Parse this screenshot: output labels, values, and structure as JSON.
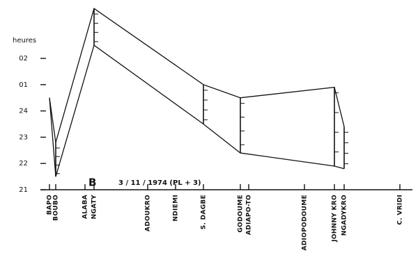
{
  "chart_data": {
    "type": "line",
    "y_label": "heures",
    "annotation_letter": "B",
    "annotation_date": "3 / 11 / 1974   (PL + 3)",
    "categories": [
      "BAPO",
      "BOUBO",
      "ALABA",
      "NGATY",
      "ADOUKRO",
      "NDIEMI",
      "S. DAGBE",
      "GODOUME",
      "ADIAPO-TO",
      "ADIOPODOUME",
      "JOHNNY KRO",
      "NGADYKRO",
      "C. VRIDI"
    ],
    "series": [
      {
        "color": "#111111",
        "values": [
          24.5,
          22.8,
          null,
          27.9,
          null,
          null,
          25.0,
          24.5,
          null,
          null,
          24.9,
          23.4,
          null
        ]
      },
      {
        "color": "#111111",
        "values": [
          24.5,
          21.5,
          null,
          26.5,
          null,
          null,
          23.5,
          22.4,
          null,
          null,
          21.9,
          21.8,
          null
        ]
      }
    ],
    "ylim": [
      21,
      28
    ],
    "yticks": [
      21,
      22,
      23,
      24,
      {
        "value": 25,
        "label": "01"
      },
      {
        "value": 26,
        "label": "02"
      }
    ]
  }
}
